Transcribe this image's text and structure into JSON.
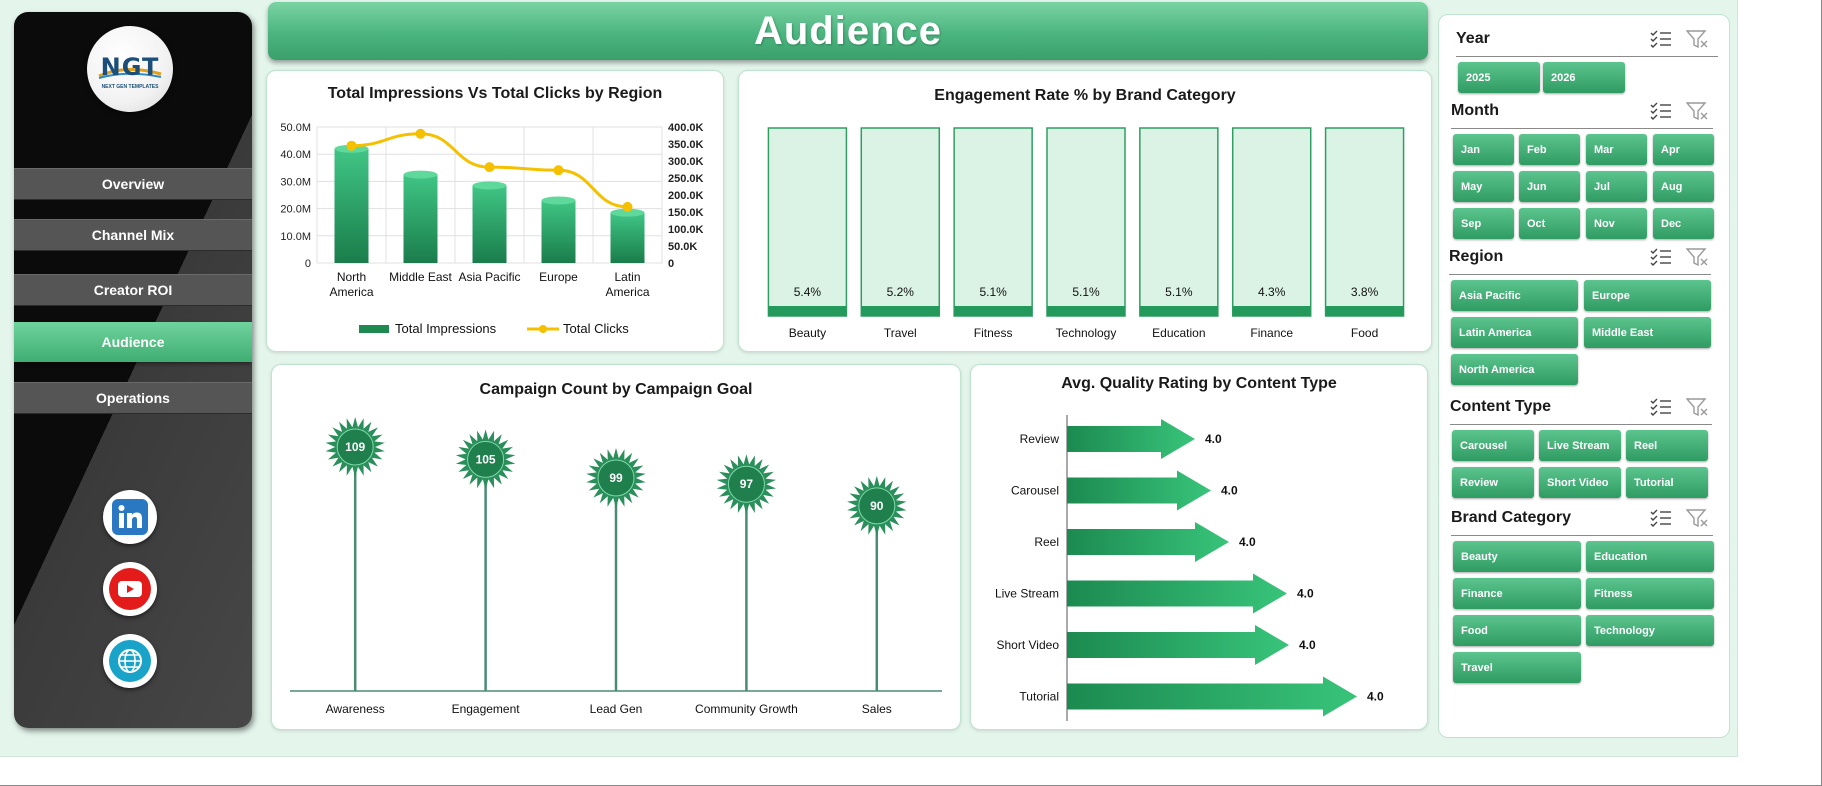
{
  "header": {
    "title": "Audience"
  },
  "logo": {
    "text": "NGT",
    "subtext": "NEXT GEN TEMPLATES"
  },
  "sidebar": {
    "items": [
      {
        "label": "Overview"
      },
      {
        "label": "Channel Mix"
      },
      {
        "label": "Creator ROI"
      },
      {
        "label": "Audience",
        "active": true
      },
      {
        "label": "Operations"
      }
    ],
    "social": [
      "linkedin-icon",
      "youtube-icon",
      "globe-icon"
    ]
  },
  "colors": {
    "accent": "#3fae72",
    "dark_green": "#1e8a50",
    "line": "#f5c000",
    "sidebar": "#0b0b0b"
  },
  "chart_data": [
    {
      "type": "bar",
      "title": "Total Impressions Vs Total Clicks by Region",
      "categories": [
        "North America",
        "Middle East",
        "Asia Pacific",
        "Europe",
        "Latin America"
      ],
      "series": [
        {
          "name": "Total Impressions",
          "values": [
            42000000,
            32500000,
            28500000,
            23000000,
            18500000
          ],
          "axis": "left"
        },
        {
          "name": "Total Clicks",
          "values": [
            345000,
            380000,
            282000,
            273000,
            165000
          ],
          "axis": "right",
          "type": "line"
        }
      ],
      "yticks_left": [
        "50.0M",
        "40.0M",
        "30.0M",
        "20.0M",
        "10.0M",
        "0"
      ],
      "yticks_right": [
        "400.0K",
        "350.0K",
        "300.0K",
        "250.0K",
        "200.0K",
        "150.0K",
        "100.0K",
        "50.0K",
        "0"
      ],
      "ylim_left": [
        0,
        50000000
      ],
      "ylim_right": [
        0,
        400000
      ],
      "legend": "bottom",
      "grid": true
    },
    {
      "type": "bar",
      "title": "Engagement  Rate % by Brand Category",
      "categories": [
        "Beauty",
        "Travel",
        "Fitness",
        "Technology",
        "Education",
        "Finance",
        "Food"
      ],
      "values": [
        5.4,
        5.2,
        5.1,
        5.1,
        5.1,
        4.3,
        3.8
      ],
      "labels": [
        "5.4%",
        "5.2%",
        "5.1%",
        "5.1%",
        "5.1%",
        "4.3%",
        "3.8%"
      ]
    },
    {
      "type": "scatter",
      "title": "Campaign Count  by Campaign Goal",
      "categories": [
        "Awareness",
        "Engagement",
        "Lead Gen",
        "Community Growth",
        "Sales"
      ],
      "values": [
        109,
        105,
        99,
        97,
        90
      ]
    },
    {
      "type": "bar",
      "title": "Avg. Quality Rating by Content Type",
      "orientation": "horizontal",
      "categories": [
        "Review",
        "Carousel",
        "Reel",
        "Live Stream",
        "Short Video",
        "Tutorial"
      ],
      "values": [
        4.0,
        4.0,
        4.0,
        4.0,
        4.0,
        4.0
      ],
      "labels": [
        "4.0",
        "4.0",
        "4.0",
        "4.0",
        "4.0",
        "4.0"
      ],
      "note": "arrow lengths increase visually though labels show 4.0"
    }
  ],
  "slicers": [
    {
      "title": "Year",
      "items": [
        "2025",
        "2026"
      ]
    },
    {
      "title": "Month",
      "items": [
        "Jan",
        "Feb",
        "Mar",
        "Apr",
        "May",
        "Jun",
        "Jul",
        "Aug",
        "Sep",
        "Oct",
        "Nov",
        "Dec"
      ]
    },
    {
      "title": "Region",
      "items": [
        "Asia Pacific",
        "Europe",
        "Latin America",
        "Middle East",
        "North America"
      ]
    },
    {
      "title": "Content Type",
      "items": [
        "Carousel",
        "Live Stream",
        "Reel",
        "Review",
        "Short Video",
        "Tutorial"
      ]
    },
    {
      "title": "Brand Category",
      "items": [
        "Beauty",
        "Education",
        "Finance",
        "Fitness",
        "Food",
        "Technology",
        "Travel"
      ]
    }
  ]
}
